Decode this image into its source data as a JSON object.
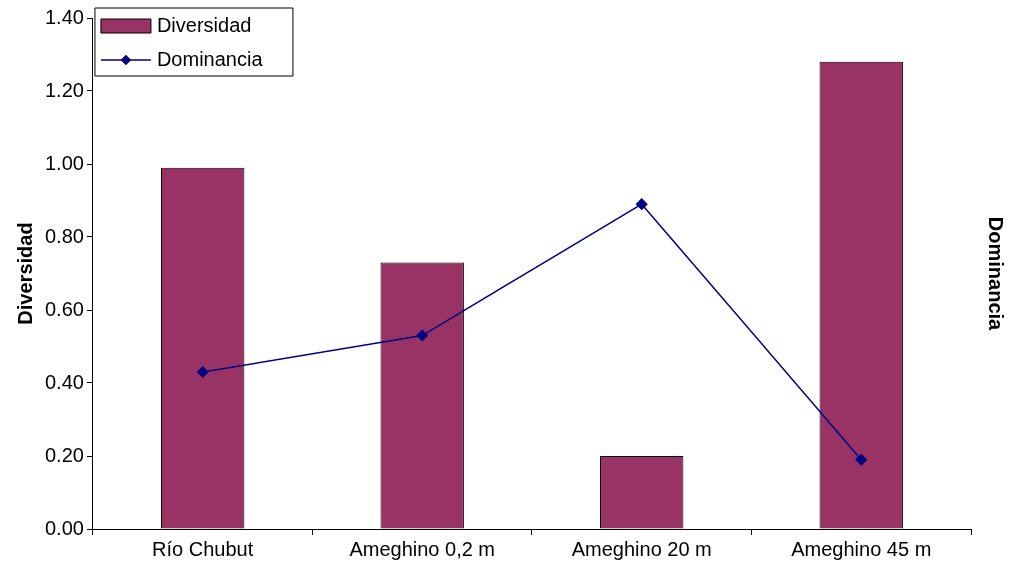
{
  "chart_data": {
    "type": "bar",
    "categories": [
      "Río Chubut",
      "Ameghino 0,2 m",
      "Ameghino 20 m",
      "Ameghino 45 m"
    ],
    "series": [
      {
        "name": "Diversidad",
        "color": "#993366",
        "values": [
          0.99,
          0.73,
          0.2,
          1.28
        ]
      },
      {
        "name": "Dominancia",
        "type": "line",
        "color": "#000080",
        "values": [
          0.43,
          0.53,
          0.89,
          0.19
        ]
      }
    ],
    "ylabel": "Diversidad",
    "y2label": "Dominancia",
    "ylim": [
      0,
      1.4
    ],
    "yticks": [
      {
        "value": 0,
        "label": "0.00"
      },
      {
        "value": 0.2,
        "label": "0.20"
      },
      {
        "value": 0.4,
        "label": "0.40"
      },
      {
        "value": 0.6,
        "label": "0.60"
      },
      {
        "value": 0.8,
        "label": "0.80"
      },
      {
        "value": 1,
        "label": "1.00"
      },
      {
        "value": 1.2,
        "label": "1.20"
      },
      {
        "value": 1.4,
        "label": "1.40"
      }
    ],
    "legend": "top left",
    "marker": "diamond",
    "line_style": "solid"
  }
}
